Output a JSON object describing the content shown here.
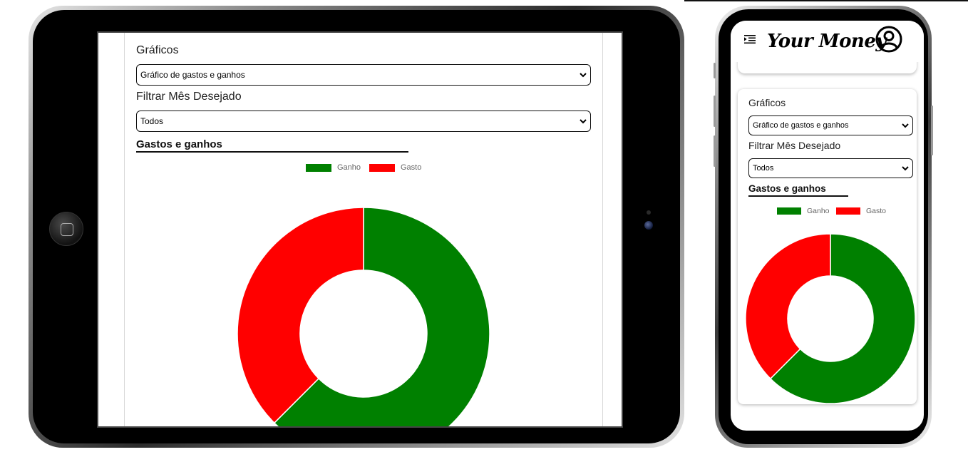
{
  "app": {
    "name": "Your Money"
  },
  "filters": {
    "charts_label": "Gráficos",
    "chart_select_value": "Gráfico de gastos e ganhos",
    "month_label": "Filtrar Mês Desejado",
    "month_select_value": "Todos"
  },
  "section": {
    "title": "Gastos e ganhos"
  },
  "chart_data": {
    "type": "pie",
    "variant": "doughnut",
    "labels": [
      "Ganho",
      "Gasto"
    ],
    "values": [
      62.5,
      37.5
    ],
    "colors": [
      "#008000",
      "#ff0000"
    ],
    "legend": "top"
  },
  "icons": {
    "menu": "menu-indent-icon",
    "profile": "user-circle-icon",
    "chevron": "chevron-down-icon"
  }
}
